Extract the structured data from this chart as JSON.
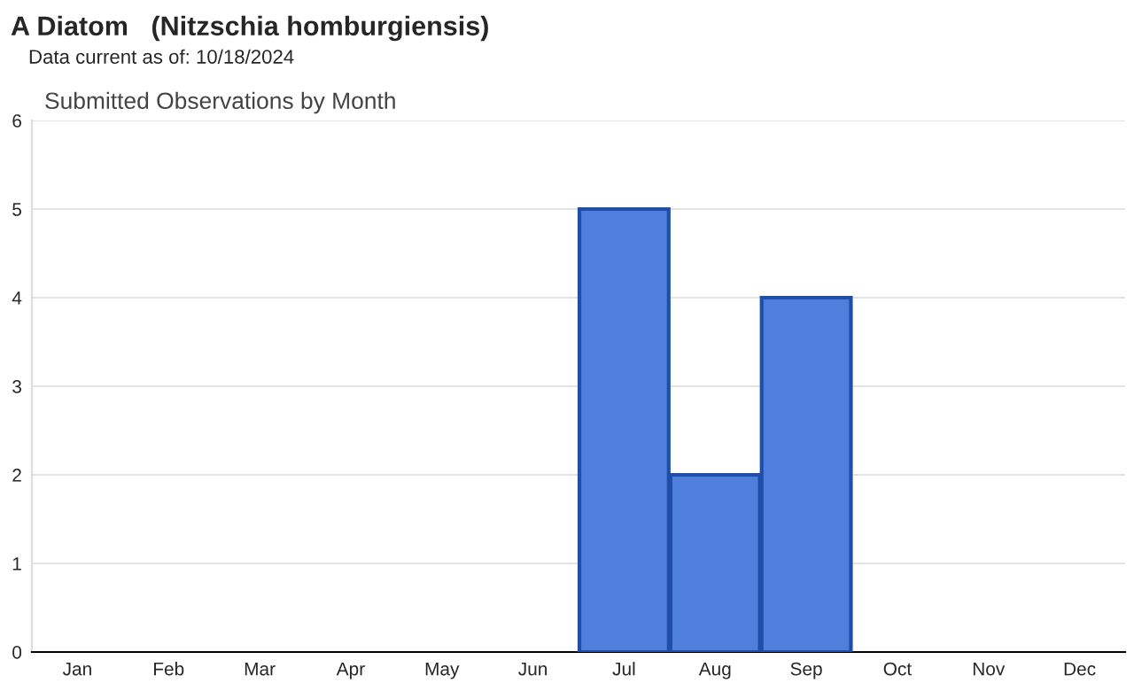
{
  "chart_data": {
    "type": "bar",
    "title": "A Diatom   (Nitzschia homburgiensis)",
    "subtitle": "Data current as of: 10/18/2024",
    "annotations": [
      "Submitted Observations by Month"
    ],
    "categories": [
      "Jan",
      "Feb",
      "Mar",
      "Apr",
      "May",
      "Jun",
      "Jul",
      "Aug",
      "Sep",
      "Oct",
      "Nov",
      "Dec"
    ],
    "values": [
      0,
      0,
      0,
      0,
      0,
      0,
      5,
      2,
      4,
      0,
      0,
      0
    ],
    "color": "#4f7fdc",
    "ylim": [
      0,
      6
    ],
    "yticks": [
      0,
      1,
      2,
      3,
      4,
      5,
      6
    ],
    "grid": "y"
  }
}
